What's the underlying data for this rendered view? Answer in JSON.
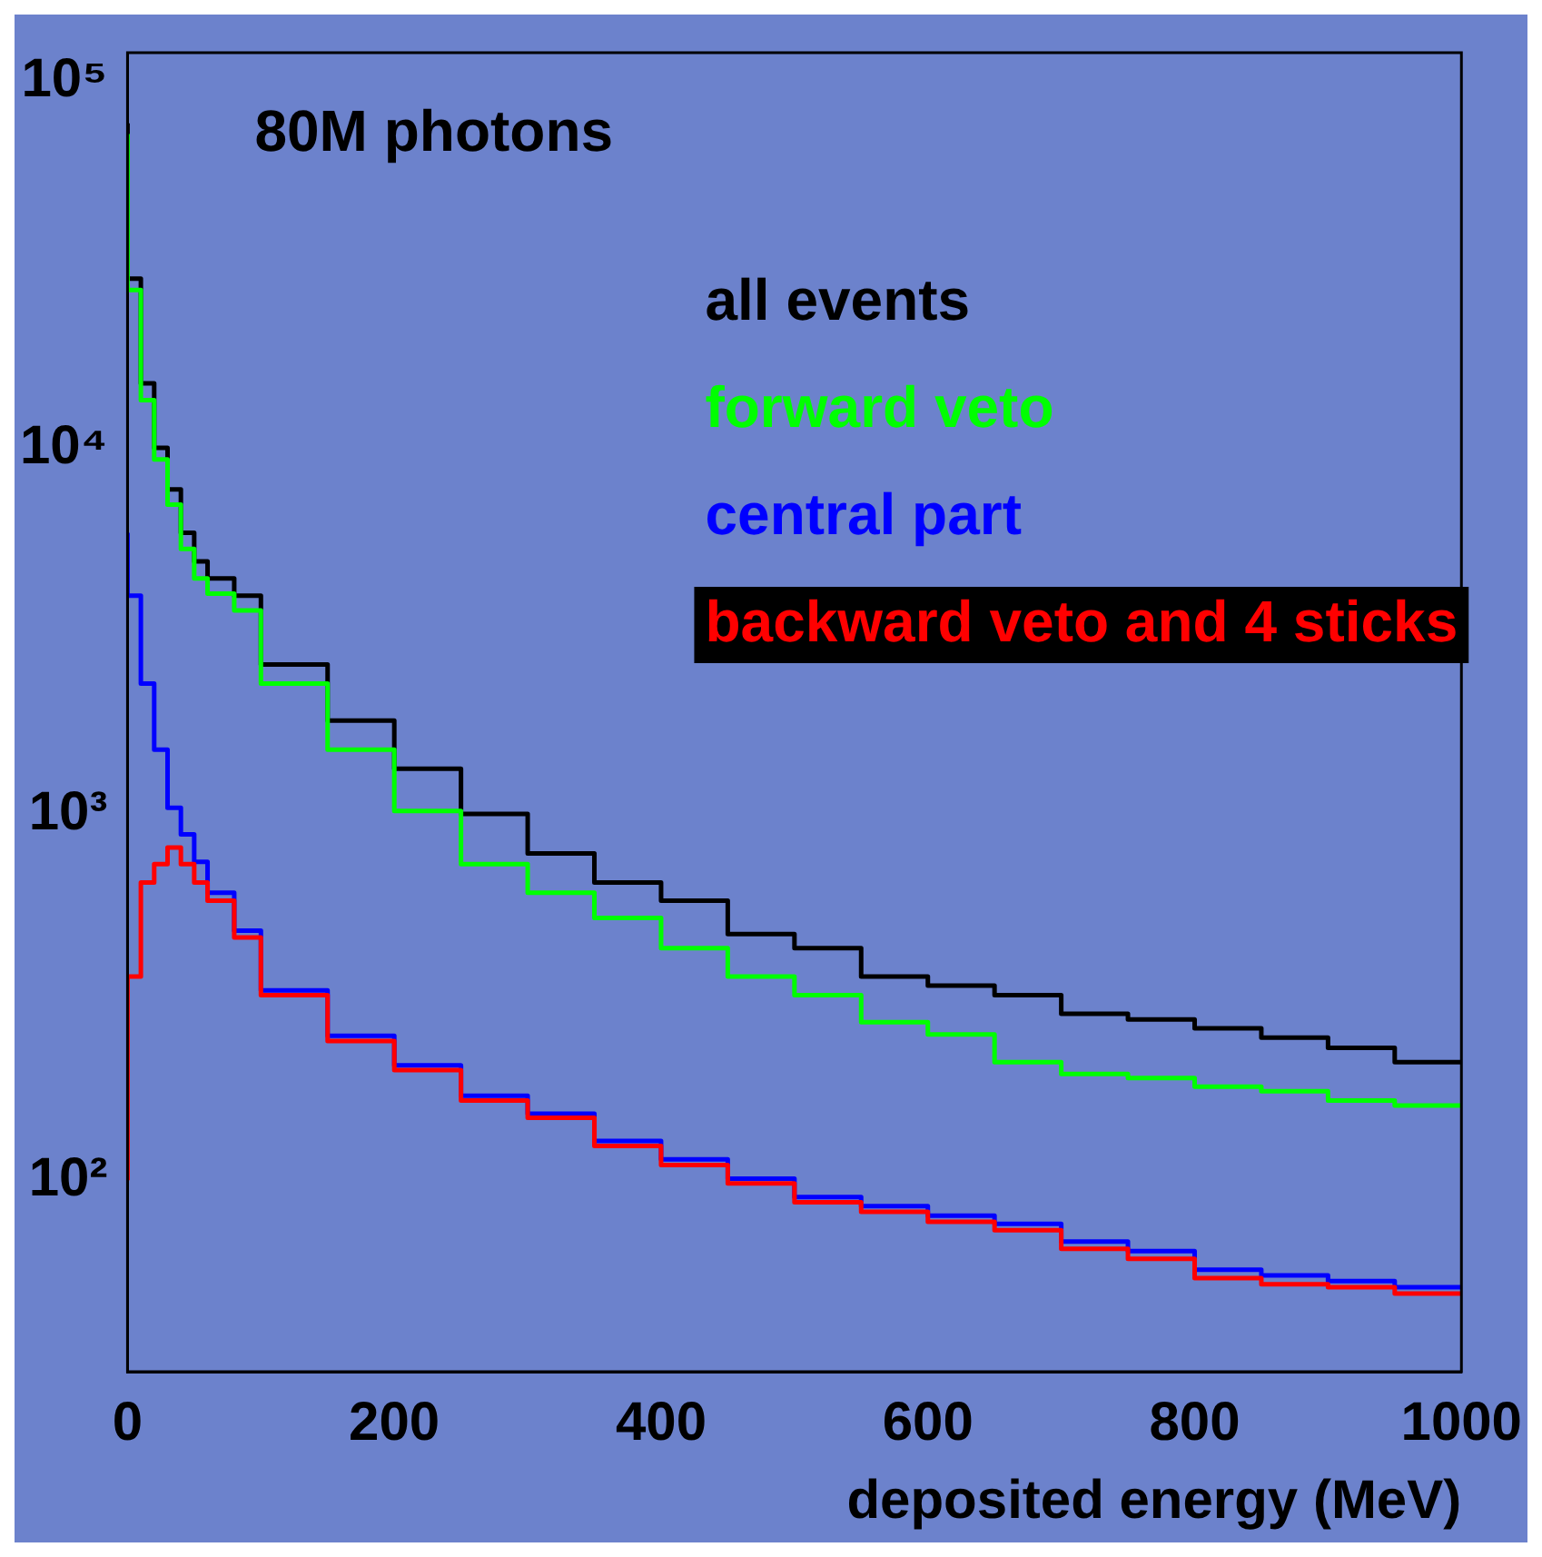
{
  "chart_data": {
    "type": "step",
    "title": "80M photons",
    "xlabel": "deposited energy (MeV)",
    "x": [
      0,
      10,
      20,
      30,
      40,
      50,
      60,
      80,
      100,
      150,
      200,
      250,
      300,
      350,
      400,
      450,
      500,
      550,
      600,
      650,
      700,
      750,
      800,
      850,
      900,
      950,
      1000
    ],
    "series": [
      {
        "name": "all events",
        "color": "#000000",
        "values": [
          77000,
          29000,
          15000,
          10000,
          7700,
          5860,
          4900,
          4400,
          3950,
          2560,
          1800,
          1330,
          1000,
          780,
          650,
          580,
          470,
          430,
          360,
          340,
          320,
          285,
          275,
          260,
          245,
          230,
          210
        ]
      },
      {
        "name": "forward veto",
        "color": "#00ff00",
        "values": [
          72000,
          27000,
          13500,
          9300,
          7000,
          5300,
          4400,
          4000,
          3600,
          2270,
          1500,
          1020,
          730,
          610,
          520,
          430,
          360,
          320,
          270,
          250,
          210,
          195,
          190,
          180,
          175,
          165,
          160
        ]
      },
      {
        "name": "central part",
        "color": "#0000ff",
        "values": [
          5860,
          3950,
          2270,
          1500,
          1040,
          880,
          740,
          610,
          480,
          330,
          248,
          206,
          170,
          152,
          128,
          114,
          101,
          90,
          85,
          80,
          76,
          68,
          64,
          57,
          55,
          53,
          51
        ]
      },
      {
        "name": "backward veto and 4 sticks",
        "color": "#ff0000",
        "values": [
          100,
          360,
          650,
          730,
          810,
          730,
          650,
          580,
          460,
          320,
          240,
          200,
          165,
          148,
          124,
          110,
          98,
          87,
          82,
          77,
          73,
          65,
          61,
          54,
          52,
          51,
          49
        ]
      }
    ],
    "xlim": [
      0,
      1000
    ],
    "xticks": [
      0,
      200,
      400,
      600,
      800,
      1000
    ],
    "ylim": [
      30,
      120000
    ],
    "yticks": [
      {
        "value": 100,
        "label": "10²"
      },
      {
        "value": 1000,
        "label": "10³"
      },
      {
        "value": 10000,
        "label": "10⁴"
      },
      {
        "value": 100000,
        "label": "10⁵"
      }
    ],
    "log": "y",
    "legend": "top right"
  }
}
